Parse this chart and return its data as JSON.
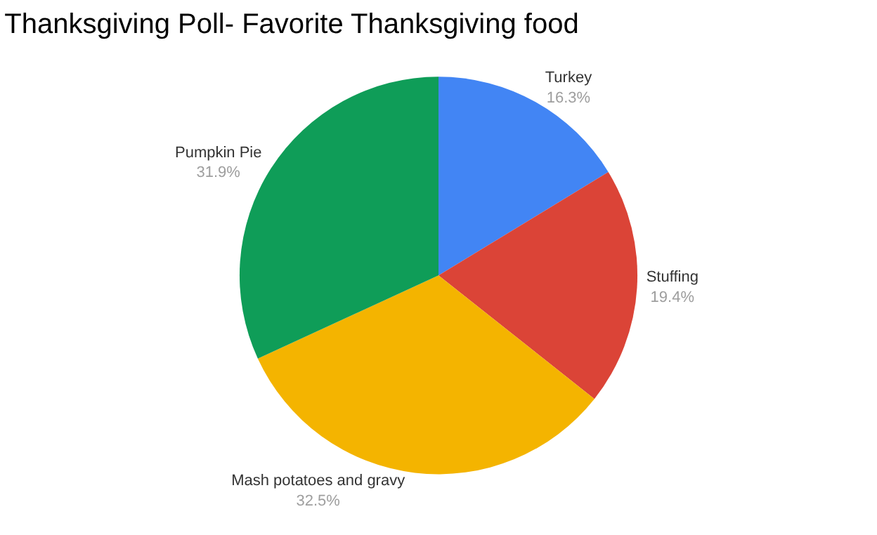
{
  "chart_data": {
    "type": "pie",
    "title": "Thanksgiving Poll- Favorite Thanksgiving food",
    "categories": [
      "Turkey",
      "Stuffing",
      "Mash potatoes and gravy",
      "Pumpkin Pie"
    ],
    "values": [
      16.3,
      19.4,
      32.5,
      31.9
    ],
    "value_labels": [
      "16.3%",
      "19.4%",
      "32.5%",
      "31.9%"
    ],
    "colors": [
      "#4285f4",
      "#db4437",
      "#f4b400",
      "#0f9d58"
    ],
    "legend": false
  }
}
